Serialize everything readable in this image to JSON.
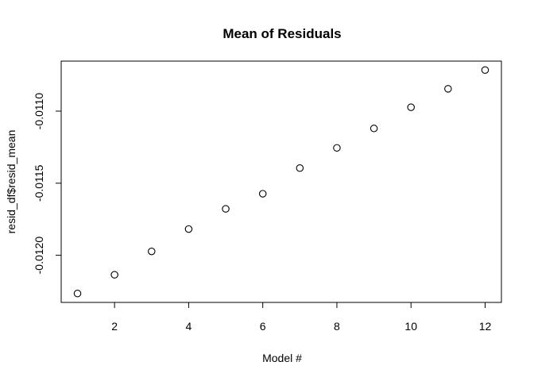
{
  "chart_data": {
    "type": "scatter",
    "title": "Mean of Residuals",
    "xlabel": "Model #",
    "ylabel": "resid_df$resid_mean",
    "x": [
      1,
      2,
      3,
      4,
      5,
      6,
      7,
      8,
      9,
      10,
      11,
      12
    ],
    "y": [
      -0.012265,
      -0.012135,
      -0.011973,
      -0.011818,
      -0.011678,
      -0.011573,
      -0.011395,
      -0.011255,
      -0.01112,
      -0.010973,
      -0.010845,
      -0.010715
    ],
    "xticks": [
      "2",
      "4",
      "6",
      "8",
      "10",
      "12"
    ],
    "xtick_values": [
      2,
      4,
      6,
      8,
      10,
      12
    ],
    "yticks": [
      "-0.0120",
      "-0.0115",
      "-0.0110"
    ],
    "ytick_values": [
      -0.012,
      -0.0115,
      -0.011
    ],
    "xlim": [
      0.56,
      12.44
    ],
    "ylim": [
      -0.012327,
      -0.010653
    ],
    "grid": false,
    "legend": "none",
    "marker": "open-circle",
    "colors": {
      "points": "#000000",
      "frame": "#000000",
      "background": "#ffffff"
    }
  }
}
